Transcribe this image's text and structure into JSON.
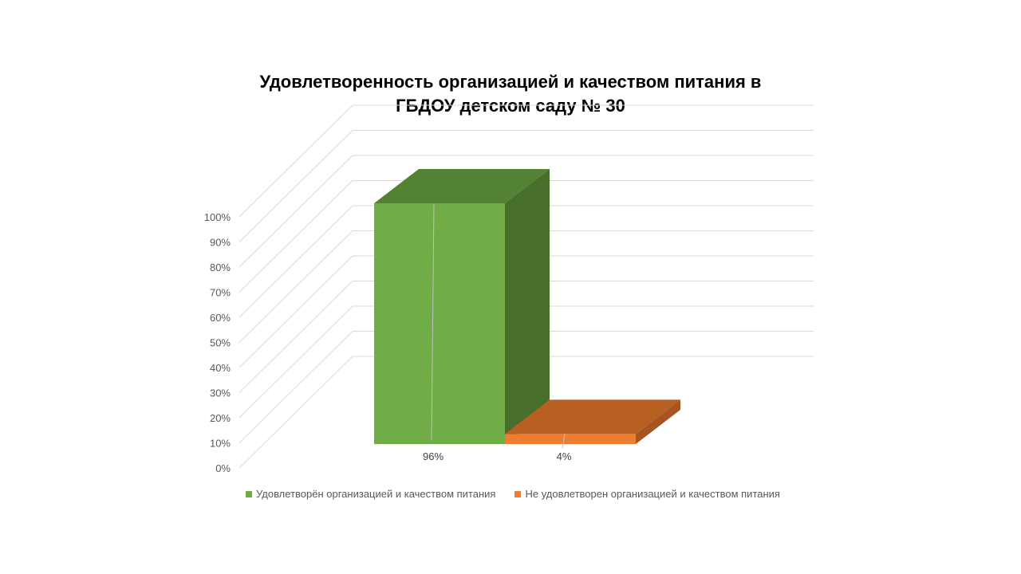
{
  "slide": {
    "background": "#ffffff"
  },
  "chart_data": {
    "type": "bar",
    "title": "Удовлетворенность организацией и качеством питания в ГБДОУ детском саду № 30",
    "title_lines": [
      "Удовлетворенность организацией и качеством питания в",
      "ГБДОУ детском саду № 30"
    ],
    "render": "3d-column",
    "ylim": [
      0,
      100
    ],
    "yticks": [
      0,
      10,
      20,
      30,
      40,
      50,
      60,
      70,
      80,
      90,
      100
    ],
    "ytick_labels": [
      "0%",
      "10%",
      "20%",
      "30%",
      "40%",
      "50%",
      "60%",
      "70%",
      "80%",
      "90%",
      "100%"
    ],
    "grid": true,
    "legend_position": "bottom",
    "series": [
      {
        "name": "Удовлетворён организацией и качеством питания",
        "value": 96,
        "data_label": "96%",
        "color_front": "#70ad47",
        "color_top": "#548235",
        "color_side": "#476e2b"
      },
      {
        "name": "Не удовлетворен организацией и качеством питания",
        "value": 4,
        "data_label": "4%",
        "color_front": "#ed7d31",
        "color_top": "#b85f22",
        "color_side": "#a65520"
      }
    ]
  }
}
